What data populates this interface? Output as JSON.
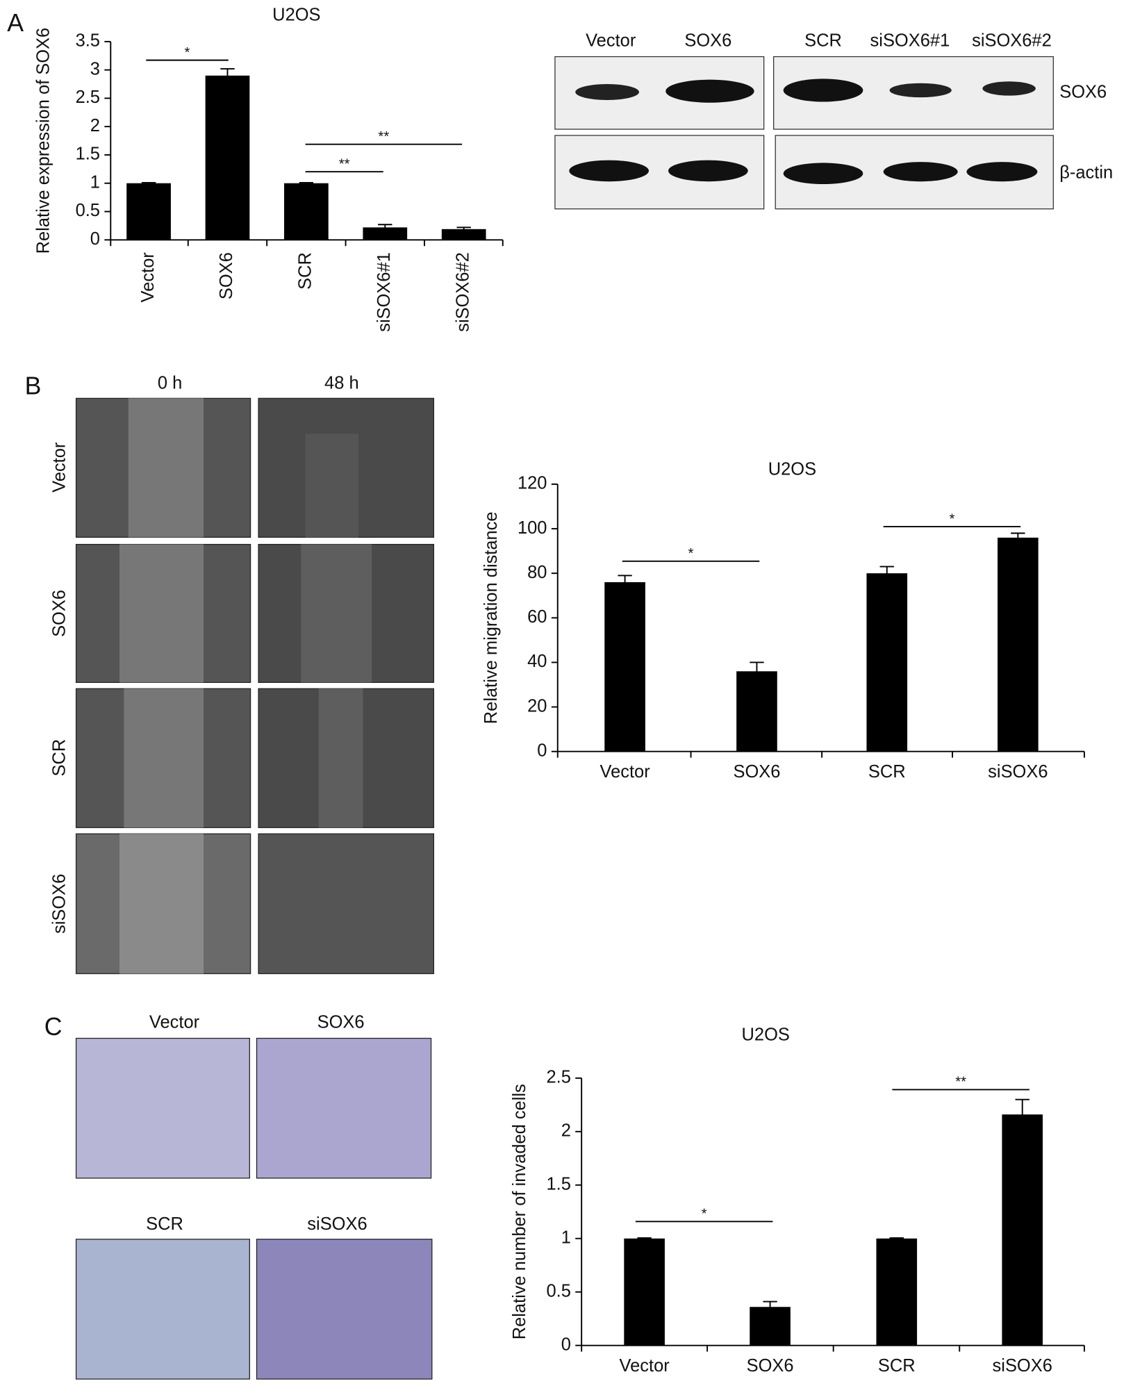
{
  "panel_labels": [
    "A",
    "B",
    "C"
  ],
  "western_blot": {
    "lane_labels": [
      "Vector",
      "SOX6",
      "SCR",
      "siSOX6#1",
      "siSOX6#2"
    ],
    "band_labels": [
      "SOX6",
      "β-actin"
    ]
  },
  "wound_healing": {
    "time_labels": [
      "0 h",
      "48 h"
    ],
    "row_labels": [
      "Vector",
      "SOX6",
      "SCR",
      "siSOX6"
    ]
  },
  "invasion": {
    "image_labels": [
      "Vector",
      "SOX6",
      "SCR",
      "siSOX6"
    ]
  },
  "chart_data": [
    {
      "type": "bar",
      "title": "U2OS",
      "y_label": "Relative expression of SOX6",
      "color": "#000000",
      "categories": [
        "Vector",
        "SOX6",
        "SCR",
        "siSOX6#1",
        "siSOX6#2"
      ],
      "values": [
        1,
        2.9,
        1,
        0.22,
        0.19
      ],
      "errors": [
        0.01,
        0.12,
        0.01,
        0.05,
        0.03
      ],
      "ylim": [
        0,
        3.5
      ],
      "yticks": [
        0,
        0.5,
        1,
        1.5,
        2,
        2.5,
        3,
        3.5
      ],
      "annotations": [
        "*",
        "**",
        "**"
      ]
    },
    {
      "type": "bar",
      "title": "U2OS",
      "y_label": "Relative migration distance",
      "color": "#000000",
      "categories": [
        "Vector",
        "SOX6",
        "SCR",
        "siSOX6"
      ],
      "values": [
        76,
        36,
        80,
        96
      ],
      "errors": [
        3,
        4,
        3,
        2
      ],
      "ylim": [
        0,
        120
      ],
      "yticks": [
        0,
        20,
        40,
        60,
        80,
        100,
        120
      ],
      "annotations": [
        "*",
        "*"
      ]
    },
    {
      "type": "bar",
      "title": "U2OS",
      "y_label": "Relative number of invaded cells",
      "color": "#000000",
      "categories": [
        "Vector",
        "SOX6",
        "SCR",
        "siSOX6"
      ],
      "values": [
        1,
        0.36,
        1,
        2.16
      ],
      "errors": [
        0.005,
        0.05,
        0.005,
        0.14
      ],
      "ylim": [
        0,
        2.5
      ],
      "yticks": [
        0,
        0.5,
        1,
        1.5,
        2,
        2.5
      ],
      "annotations": [
        "*",
        "**"
      ]
    }
  ]
}
